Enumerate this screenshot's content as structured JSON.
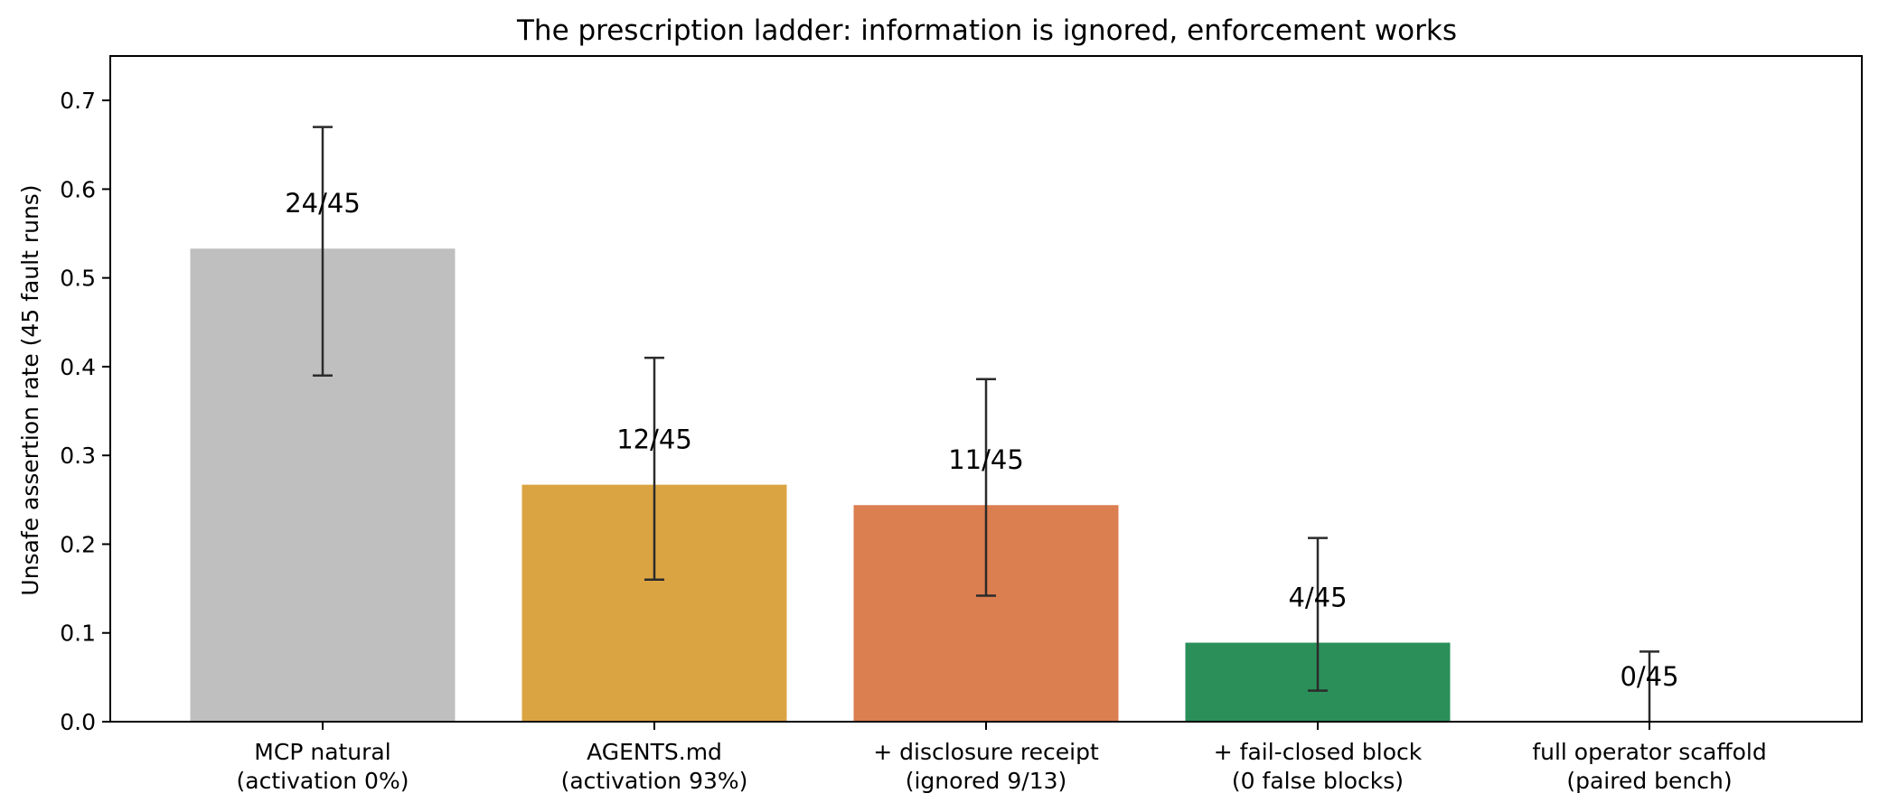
{
  "chart_data": {
    "type": "bar",
    "title": "The prescription ladder: information is ignored, enforcement works",
    "xlabel": "",
    "ylabel": "Unsafe assertion rate (45 fault runs)",
    "ylim": [
      0,
      0.75
    ],
    "yticks": [
      "0.0",
      "0.1",
      "0.2",
      "0.3",
      "0.4",
      "0.5",
      "0.6",
      "0.7"
    ],
    "grid": false,
    "categories": [
      {
        "line1": "MCP natural",
        "line2": "(activation 0%)"
      },
      {
        "line1": "AGENTS.md",
        "line2": "(activation 93%)"
      },
      {
        "line1": "+ disclosure receipt",
        "line2": "(ignored 9/13)"
      },
      {
        "line1": "+ fail-closed block",
        "line2": "(0 false blocks)"
      },
      {
        "line1": "full operator scaffold",
        "line2": "(paired bench)"
      }
    ],
    "values": [
      0.533,
      0.267,
      0.244,
      0.089,
      0.0
    ],
    "error_low": [
      0.39,
      0.16,
      0.142,
      0.035,
      0.0
    ],
    "error_high": [
      0.67,
      0.41,
      0.386,
      0.207,
      0.079
    ],
    "data_labels": [
      "24/45",
      "12/45",
      "11/45",
      "4/45",
      "0/45"
    ],
    "colors": [
      "#bfbfbf",
      "#dba443",
      "#db7e50",
      "#2b8f5a",
      "#2b8f5a"
    ]
  }
}
